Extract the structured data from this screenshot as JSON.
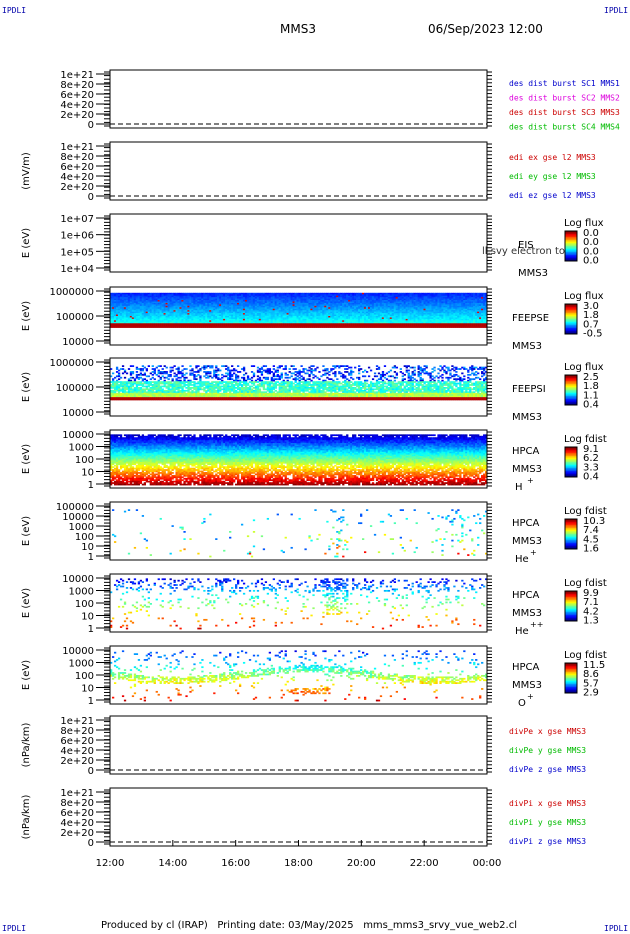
{
  "header": {
    "corner_tl": "IPDLI",
    "corner_tr": "IPDLI",
    "corner_bl": "IPDLI",
    "corner_br": "IPDLI",
    "spacecraft": "MMS3",
    "datetime": "06/Sep/2023 12:00"
  },
  "footer": {
    "text": "Produced by cl (IRAP)   Printing date: 03/May/2025   mms_mms3_srvy_vue_web2.cl"
  },
  "colors": {
    "blue": "#0000cc",
    "magenta": "#dd00dd",
    "red": "#cc0000",
    "green": "#00bb00"
  },
  "chart_data": {
    "type": "heatmap",
    "x_ticks": [
      "12:00",
      "14:00",
      "16:00",
      "18:00",
      "20:00",
      "22:00",
      "00:00"
    ],
    "panels": [
      {
        "kind": "line",
        "ylabel": "",
        "ticks": [
          "1e+21",
          "8e+20",
          "6e+20",
          "4e+20",
          "2e+20",
          "0"
        ],
        "legend": [
          {
            "text": "des dist burst SC1 MMS1",
            "color": "blue"
          },
          {
            "text": "des dist burst SC2 MMS2",
            "color": "magenta"
          },
          {
            "text": "des dist burst SC3 MMS3",
            "color": "red"
          },
          {
            "text": "des dist burst SC4 MMS4",
            "color": "green"
          }
        ]
      },
      {
        "kind": "line",
        "ylabel": "(mV/m)",
        "ticks": [
          "1e+21",
          "8e+20",
          "6e+20",
          "4e+20",
          "2e+20",
          "0"
        ],
        "legend": [
          {
            "text": "edi ex gse l2 MMS3",
            "color": "red"
          },
          {
            "text": "edi ey gse l2 MMS3",
            "color": "green"
          },
          {
            "text": "edi ez gse l2 MMS3",
            "color": "blue"
          }
        ]
      },
      {
        "kind": "spectro",
        "ylabel": "E (eV)",
        "ticks": [
          "1e+07",
          "1e+06",
          "1e+05",
          "1e+04"
        ],
        "fill": "none",
        "labels": [
          "EIS",
          "MMS3"
        ],
        "overlay": "ll.svy electron to",
        "cb_title": "Log flux",
        "cb_ticks": [
          "0.0",
          "0.0",
          "0.0",
          "0.0"
        ]
      },
      {
        "kind": "spectro",
        "ylabel": "E (eV)",
        "ticks": [
          "1000000",
          "100000",
          "10000"
        ],
        "fill": "feepse",
        "labels": [
          "FEEPSE",
          "MMS3"
        ],
        "cb_title": "Log flux",
        "cb_ticks": [
          "3.0",
          "1.8",
          "0.7",
          "-0.5"
        ]
      },
      {
        "kind": "spectro",
        "ylabel": "E (eV)",
        "ticks": [
          "1000000",
          "100000",
          "10000"
        ],
        "fill": "feepsi",
        "labels": [
          "FEEPSI",
          "MMS3"
        ],
        "cb_title": "Log flux",
        "cb_ticks": [
          "2.5",
          "1.8",
          "1.1",
          "0.4"
        ]
      },
      {
        "kind": "spectro",
        "ylabel": "E (eV)",
        "ticks": [
          "10000",
          "1000",
          "100",
          "10",
          "1"
        ],
        "fill": "hplus",
        "labels": [
          "HPCA",
          "MMS3"
        ],
        "species": "H",
        "species_sup": "+",
        "cb_title": "Log fdist",
        "cb_ticks": [
          "9.1",
          "6.2",
          "3.3",
          "0.4"
        ]
      },
      {
        "kind": "spectro",
        "ylabel": "E (eV)",
        "ticks": [
          "100000",
          "10000",
          "1000",
          "100",
          "10",
          "1"
        ],
        "fill": "heplus",
        "labels": [
          "HPCA",
          "MMS3"
        ],
        "species": "He",
        "species_sup": "+",
        "cb_title": "Log fdist",
        "cb_ticks": [
          "10.3",
          "7.4",
          "4.5",
          "1.6"
        ]
      },
      {
        "kind": "spectro",
        "ylabel": "E (eV)",
        "ticks": [
          "10000",
          "1000",
          "100",
          "10",
          "1"
        ],
        "fill": "hepp",
        "labels": [
          "HPCA",
          "MMS3"
        ],
        "species": "He",
        "species_sup": "++",
        "cb_title": "Log fdist",
        "cb_ticks": [
          "9.9",
          "7.1",
          "4.2",
          "1.3"
        ]
      },
      {
        "kind": "spectro",
        "ylabel": "E (eV)",
        "ticks": [
          "10000",
          "1000",
          "100",
          "10",
          "1"
        ],
        "fill": "oplus",
        "labels": [
          "HPCA",
          "MMS3"
        ],
        "species": "O",
        "species_sup": "+",
        "cb_title": "Log fdist",
        "cb_ticks": [
          "11.5",
          "8.6",
          "5.7",
          "2.9"
        ]
      },
      {
        "kind": "line",
        "ylabel": "(nPa/km)",
        "ticks": [
          "1e+21",
          "8e+20",
          "6e+20",
          "4e+20",
          "2e+20",
          "0"
        ],
        "legend": [
          {
            "text": "divPe x gse MMS3",
            "color": "red"
          },
          {
            "text": "divPe y gse MMS3",
            "color": "green"
          },
          {
            "text": "divPe z gse MMS3",
            "color": "blue"
          }
        ]
      },
      {
        "kind": "line",
        "ylabel": "(nPa/km)",
        "ticks": [
          "1e+21",
          "8e+20",
          "6e+20",
          "4e+20",
          "2e+20",
          "0"
        ],
        "legend": [
          {
            "text": "divPi x gse MMS3",
            "color": "red"
          },
          {
            "text": "divPi y gse MMS3",
            "color": "green"
          },
          {
            "text": "divPi z gse MMS3",
            "color": "blue"
          }
        ]
      }
    ]
  }
}
